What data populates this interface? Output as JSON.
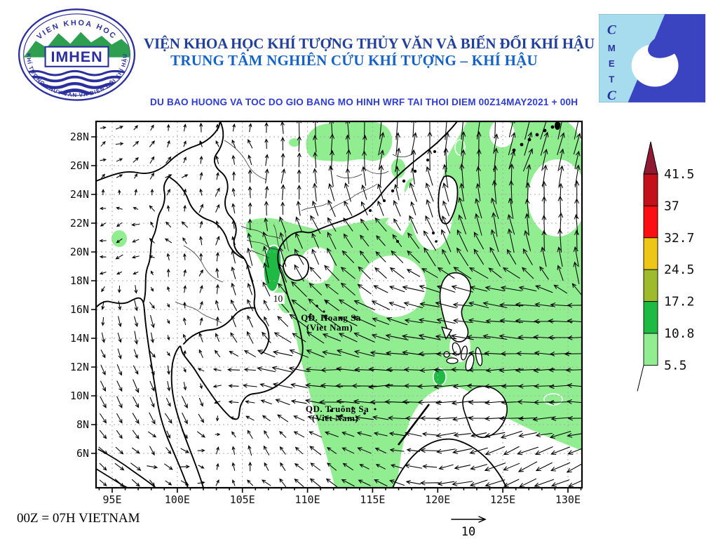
{
  "header": {
    "line1": "VIỆN KHOA HỌC KHÍ TƯỢNG THỦY VĂN VÀ BIẾN ĐỔI KHÍ HẬU",
    "line2": "TRUNG TÂM NGHIÊN CỨU KHÍ TƯỢNG – KHÍ HẬU",
    "line1_color": "#22409B",
    "line2_color": "#1563C6",
    "forecast_title": "DU BAO HUONG VA TOC DO GIO BANG MO HINH WRF TAI THOI DIEM  00Z14MAY2021 + 00H",
    "forecast_color": "#2E3CD4"
  },
  "logo_imhen": {
    "arc_top": "VIEN KHOA HOC",
    "acronym": "IMHEN",
    "arc_bottom": "KHÍ TƯỢNG THỦY VĂN VÀ BIẾN ĐỔI KHÍ HẬU",
    "blue": "#2B2F9E",
    "mountain_green": "#2E9E4F"
  },
  "logo_cmetc": {
    "letters": [
      "C",
      "M",
      "E",
      "T",
      "C"
    ],
    "bg_color": "#A6DCEE",
    "band_color": "#3B44C0",
    "letter_color": "#2B2F9E"
  },
  "map": {
    "lat_labels": [
      "28N",
      "26N",
      "24N",
      "22N",
      "20N",
      "18N",
      "16N",
      "14N",
      "12N",
      "10N",
      "8N",
      "6N"
    ],
    "lon_labels": [
      "95E",
      "100E",
      "105E",
      "110E",
      "115E",
      "120E",
      "125E",
      "130E"
    ],
    "island_labels": {
      "hoang_sa_line1": "QD. Hoang Sa",
      "hoang_sa_line2": "(Viet Nam)",
      "truong_sa_line1": "QD. Truông Sa",
      "truong_sa_line2": "(Viet Nam)"
    },
    "contour_label": "10",
    "shade_light": "#90EE90",
    "shade_medium": "#1FBA44"
  },
  "colorbar": {
    "levels": [
      "41.5",
      "37",
      "32.7",
      "24.5",
      "17.2",
      "10.8",
      "5.5"
    ],
    "segment_colors": [
      "#C41119",
      "#FB0F12",
      "#EEC617",
      "#9EBB2B",
      "#1FBA44",
      "#90EE90"
    ],
    "arrow_color": "#8E1B33"
  },
  "footer": {
    "note": "00Z = 07H VIETNAM",
    "reference_arrow_label": "10"
  },
  "wind_field": {
    "control_points": [
      [
        96,
        27,
        25,
        0.1
      ],
      [
        100,
        25.5,
        45,
        0.1
      ],
      [
        104,
        27.5,
        95,
        0.12
      ],
      [
        99,
        22,
        130,
        0.1
      ],
      [
        104,
        22,
        75,
        0.15
      ],
      [
        108,
        25,
        80,
        0.3
      ],
      [
        112,
        27,
        90,
        0.5
      ],
      [
        117,
        27,
        80,
        0.55
      ],
      [
        122,
        27,
        85,
        0.65
      ],
      [
        127,
        27,
        72,
        0.6
      ],
      [
        131,
        27.5,
        78,
        0.55
      ],
      [
        96,
        21,
        200,
        0.12
      ],
      [
        101,
        19,
        75,
        0.12
      ],
      [
        107,
        19.5,
        105,
        0.55
      ],
      [
        111,
        20.5,
        115,
        0.45
      ],
      [
        115,
        20,
        130,
        0.3
      ],
      [
        119,
        23.5,
        112,
        0.4
      ],
      [
        121,
        21,
        115,
        0.55
      ],
      [
        125,
        22,
        103,
        0.6
      ],
      [
        129,
        22,
        88,
        0.55
      ],
      [
        131,
        19,
        95,
        0.5
      ],
      [
        97,
        15,
        285,
        0.25
      ],
      [
        102,
        14.5,
        85,
        0.15
      ],
      [
        106,
        15,
        110,
        0.25
      ],
      [
        110,
        16,
        140,
        0.55
      ],
      [
        113,
        17.5,
        142,
        0.45
      ],
      [
        114,
        15,
        155,
        0.6
      ],
      [
        118,
        16,
        168,
        0.5
      ],
      [
        122,
        16.5,
        172,
        0.55
      ],
      [
        126,
        15.5,
        178,
        0.6
      ],
      [
        130,
        15.5,
        180,
        0.6
      ],
      [
        97,
        10,
        295,
        0.3
      ],
      [
        101,
        8.5,
        300,
        0.25
      ],
      [
        105,
        11,
        180,
        0.25
      ],
      [
        108,
        12.5,
        165,
        0.5
      ],
      [
        112,
        11,
        180,
        0.62
      ],
      [
        116,
        11,
        182,
        0.6
      ],
      [
        120,
        11,
        185,
        0.58
      ],
      [
        124,
        11,
        182,
        0.55
      ],
      [
        128,
        11,
        180,
        0.55
      ],
      [
        131,
        11,
        180,
        0.55
      ],
      [
        96,
        5,
        320,
        0.22
      ],
      [
        100,
        5,
        340,
        0.15
      ],
      [
        104,
        5.5,
        80,
        0.12
      ],
      [
        107,
        6,
        120,
        0.2
      ],
      [
        111,
        5,
        140,
        0.25
      ],
      [
        115,
        5,
        150,
        0.25
      ],
      [
        118,
        6,
        170,
        0.35
      ],
      [
        122,
        5.5,
        195,
        0.45
      ],
      [
        126,
        5,
        205,
        0.5
      ],
      [
        130,
        5,
        205,
        0.5
      ]
    ]
  }
}
